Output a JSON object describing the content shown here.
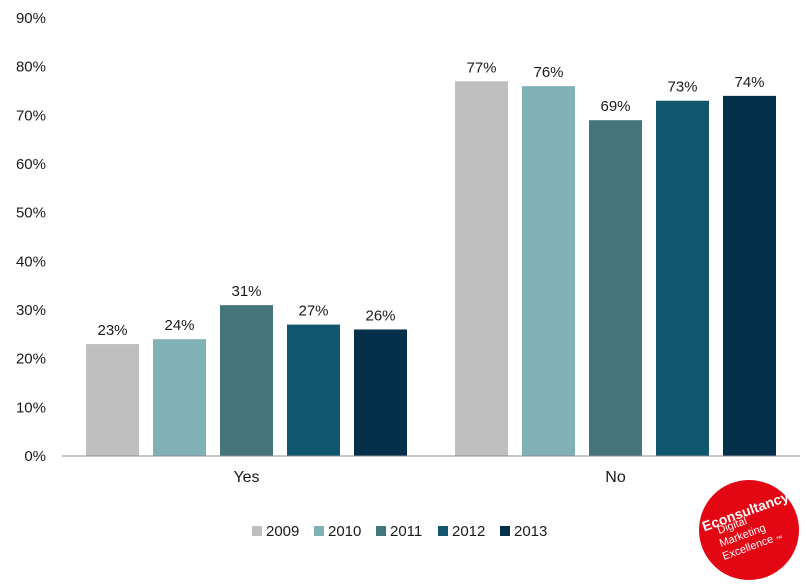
{
  "chart_data": {
    "type": "bar",
    "categories": [
      "Yes",
      "No"
    ],
    "series": [
      {
        "name": "2009",
        "values": [
          23,
          77
        ],
        "color": "#bfbfbf"
      },
      {
        "name": "2010",
        "values": [
          24,
          76
        ],
        "color": "#7fb1b7"
      },
      {
        "name": "2011",
        "values": [
          31,
          69
        ],
        "color": "#44757b"
      },
      {
        "name": "2012",
        "values": [
          27,
          73
        ],
        "color": "#11566f"
      },
      {
        "name": "2013",
        "values": [
          26,
          74
        ],
        "color": "#05304a"
      }
    ],
    "data_labels": [
      [
        "23%",
        "77%"
      ],
      [
        "24%",
        "76%"
      ],
      [
        "31%",
        "69%"
      ],
      [
        "27%",
        "73%"
      ],
      [
        "26%",
        "74%"
      ]
    ],
    "ylim": [
      0,
      90
    ],
    "yticks": [
      0,
      10,
      20,
      30,
      40,
      50,
      60,
      70,
      80,
      90
    ],
    "ytick_labels": [
      "0%",
      "10%",
      "20%",
      "30%",
      "40%",
      "50%",
      "60%",
      "70%",
      "80%",
      "90%"
    ],
    "grid": false,
    "legend_position": "bottom",
    "title": "",
    "xlabel": "",
    "ylabel": ""
  },
  "logo": {
    "brand": "Econsultancy",
    "tagline_lines": [
      "Digital",
      "Marketing",
      "Excellence"
    ],
    "trademark": "™",
    "color": "#e30613"
  }
}
